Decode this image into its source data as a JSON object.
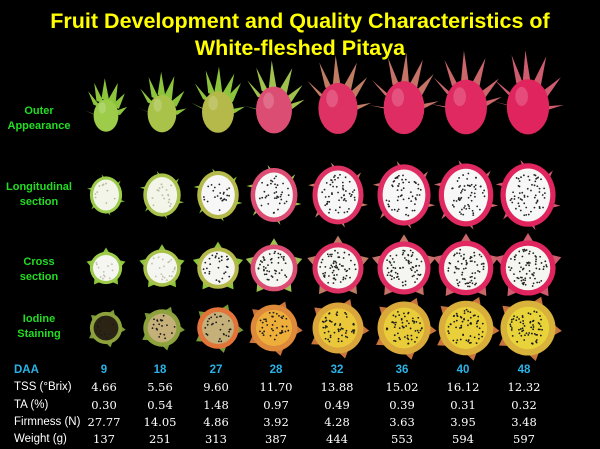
{
  "title": {
    "line1": "Fruit Development and Quality Characteristics of",
    "line2": "White-fleshed Pitaya"
  },
  "row_labels": {
    "outer": [
      "Outer",
      "Appearance"
    ],
    "longitudinal": [
      "Longitudinal",
      "section"
    ],
    "cross": [
      "Cross",
      "section"
    ],
    "iodine": [
      "Iodine",
      "Staining"
    ]
  },
  "colors": {
    "title": "#ffff00",
    "row_label": "#22dd22",
    "daa": "#2ab3e6",
    "text": "#ffffff",
    "background": "#000000"
  },
  "table": {
    "daa": {
      "label": "DAA",
      "values": [
        "9",
        "18",
        "27",
        "28",
        "32",
        "36",
        "40",
        "48"
      ]
    },
    "tss": {
      "label": "TSS (°Brix)",
      "values": [
        "4.66",
        "5.56",
        "9.60",
        "11.70",
        "13.88",
        "15.02",
        "16.12",
        "12.32"
      ]
    },
    "ta": {
      "label": "TA (%)",
      "values": [
        "0.30",
        "0.54",
        "1.48",
        "0.97",
        "0.49",
        "0.39",
        "0.31",
        "0.32"
      ]
    },
    "firmness": {
      "label": "Firmness (N)",
      "values": [
        "27.77",
        "14.05",
        "4.86",
        "3.92",
        "4.28",
        "3.63",
        "3.95",
        "3.48"
      ]
    },
    "weight": {
      "label": "Weight (g)",
      "values": [
        "137",
        "251",
        "313",
        "387",
        "444",
        "553",
        "594",
        "597"
      ]
    }
  }
}
